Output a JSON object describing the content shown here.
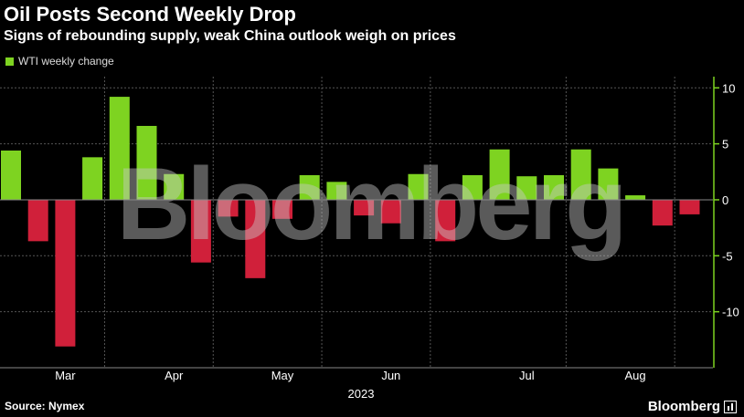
{
  "header": {
    "title": "Oil Posts Second Weekly Drop",
    "subtitle": "Signs of rebounding supply, weak China outlook weigh on prices"
  },
  "footer": {
    "source": "Source: Nymex",
    "brand": "Bloomberg"
  },
  "watermark": "Bloomberg",
  "colors": {
    "positive": "#7ed321",
    "negative": "#d0203a",
    "axis": "#7ed321"
  },
  "chart_data": {
    "type": "bar",
    "title": "Oil Posts Second Weekly Drop",
    "subtitle": "Signs of rebounding supply, weak China outlook weigh on prices",
    "series": [
      {
        "name": "WTI weekly change",
        "values": [
          4.4,
          -3.7,
          -13.1,
          3.8,
          9.2,
          6.6,
          2.3,
          -5.6,
          -1.5,
          -7.0,
          -1.7,
          2.2,
          1.6,
          -1.4,
          -2.1,
          2.3,
          -3.7,
          2.2,
          4.5,
          2.1,
          2.2,
          4.5,
          2.8,
          0.4,
          -2.3,
          -1.3
        ]
      }
    ],
    "y_ticks": [
      "10",
      "5",
      "0",
      "-5",
      "-10"
    ],
    "y_tick_values": [
      10,
      5,
      0,
      -5,
      -10
    ],
    "ylim": [
      -15,
      11
    ],
    "x_month_labels": [
      "Mar",
      "Apr",
      "May",
      "Jun",
      "Jul",
      "Aug"
    ],
    "x_month_label_index": [
      2,
      6,
      10,
      14,
      19,
      23
    ],
    "x_year_label": "2023",
    "gridlines": [
      10,
      5,
      -5,
      -10
    ],
    "grid": true,
    "legend_position": "top-left",
    "ylabel": "",
    "xlabel": ""
  }
}
